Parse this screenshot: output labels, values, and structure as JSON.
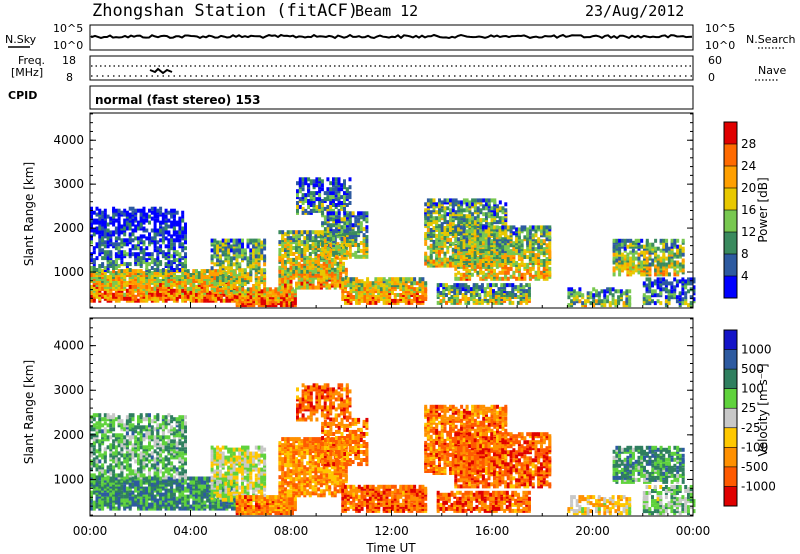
{
  "header": {
    "station": "Zhongshan Station (fitACF)",
    "beam": "Beam 12",
    "date": "23/Aug/2012"
  },
  "top_panels": {
    "nsky_label": "N.Sky",
    "nsky_ticks": [
      "10^5",
      "10^0"
    ],
    "nsearch_label": "N.Search",
    "nsearch_ticks": [
      "10^5",
      "10^0"
    ],
    "freq_label_1": "Freq.",
    "freq_label_2": "[MHz]",
    "freq_ticks": [
      "18",
      "8"
    ],
    "nave_label": "Nave",
    "nave_ticks": [
      "60",
      "0"
    ],
    "cpid_label": "CPID",
    "cpid_text": "normal (fast stereo) 153"
  },
  "chart_data": [
    {
      "type": "heatmap",
      "name": "power",
      "ylabel": "Slant Range [km]",
      "xlabel": "",
      "yticks": [
        1000,
        2000,
        3000,
        4000
      ],
      "ylim": [
        180,
        4620
      ],
      "colorbar_label": "Power [dB]",
      "colorbar_ticks": [
        "28",
        "24",
        "20",
        "16",
        "12",
        "8",
        "4"
      ],
      "colorbar_colors": [
        "#e00000",
        "#ff6a00",
        "#ff9f00",
        "#e8c800",
        "#78c850",
        "#3a8a5e",
        "#2d5aa0",
        "#0000ff"
      ]
    },
    {
      "type": "heatmap",
      "name": "velocity",
      "ylabel": "Slant Range [km]",
      "xlabel": "Time UT",
      "yticks": [
        1000,
        2000,
        3000,
        4000
      ],
      "ylim": [
        180,
        4620
      ],
      "xticks": [
        "00:00",
        "04:00",
        "08:00",
        "12:00",
        "16:00",
        "20:00",
        "00:00"
      ],
      "colorbar_label": "Velocity [m s⁻¹]",
      "colorbar_ticks": [
        "1000",
        "500",
        "100",
        "25",
        "-25",
        "-100",
        "-500",
        "-1000"
      ],
      "colorbar_colors": [
        "#1414c8",
        "#2d5aa0",
        "#2f7f5f",
        "#5fd23c",
        "#c8c8c8",
        "#ffc800",
        "#ff9000",
        "#ff5a00",
        "#e00000"
      ]
    }
  ]
}
